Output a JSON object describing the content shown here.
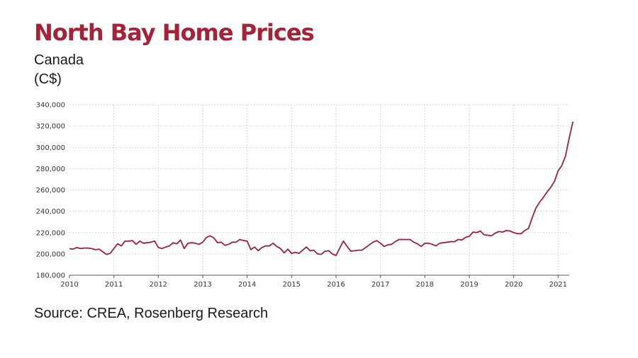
{
  "header": {
    "title": "North Bay Home Prices",
    "subtitle": "Canada",
    "units": "(C$)"
  },
  "footer": {
    "source": "Source: CREA, Rosenberg Research"
  },
  "colors": {
    "title": "#a52238",
    "line": "#9c2336",
    "grid": "#d9d9d9",
    "axis": "#555555"
  },
  "chart_data": {
    "type": "line",
    "title": "North Bay Home Prices",
    "xlabel": "",
    "ylabel": "",
    "xlim": [
      2010,
      2021.25
    ],
    "ylim": [
      180000,
      340000
    ],
    "grid": true,
    "x_ticks": [
      2010,
      2011,
      2012,
      2013,
      2014,
      2015,
      2016,
      2017,
      2018,
      2019,
      2020,
      2021
    ],
    "y_ticks": [
      180000,
      200000,
      220000,
      240000,
      260000,
      280000,
      300000,
      320000,
      340000
    ],
    "x_tick_labels": [
      "2010",
      "2011",
      "2012",
      "2013",
      "2014",
      "2015",
      "2016",
      "2017",
      "2018",
      "2019",
      "2020",
      "2021"
    ],
    "y_tick_labels": [
      "180,000",
      "200,000",
      "220,000",
      "240,000",
      "260,000",
      "280,000",
      "300,000",
      "320,000",
      "340,000"
    ],
    "series": [
      {
        "name": "North Bay Home Prices",
        "x_start": 2010.0,
        "step": 0.0833333,
        "values": [
          205000,
          204500,
          206000,
          205000,
          205500,
          205500,
          205000,
          204000,
          204500,
          202000,
          199500,
          200500,
          205000,
          209500,
          207500,
          212000,
          212000,
          212500,
          209000,
          212000,
          210000,
          210500,
          211000,
          212000,
          206000,
          205000,
          206500,
          207500,
          210500,
          209500,
          213000,
          205000,
          210000,
          210500,
          210000,
          209000,
          211000,
          215500,
          217000,
          215000,
          210500,
          211000,
          208000,
          209000,
          211000,
          211000,
          213500,
          212500,
          212000,
          204000,
          206500,
          203000,
          206000,
          207500,
          207500,
          210000,
          207000,
          205000,
          201000,
          204500,
          200500,
          201500,
          200500,
          203500,
          206500,
          203000,
          203500,
          200000,
          199500,
          202500,
          203000,
          200000,
          198500,
          205500,
          212000,
          207000,
          202500,
          203000,
          203500,
          203500,
          206000,
          208500,
          211000,
          212500,
          210000,
          207000,
          208500,
          209000,
          211500,
          213500,
          213500,
          213500,
          213500,
          211000,
          209500,
          207000,
          210000,
          210000,
          209000,
          207500,
          210000,
          210500,
          211000,
          211500,
          211500,
          213500,
          213000,
          215500,
          216500,
          220500,
          220000,
          221500,
          218000,
          217500,
          217000,
          219500,
          221000,
          220500,
          222000,
          221500,
          220000,
          219000,
          219000,
          222000,
          224000,
          234000,
          243000,
          248500,
          253000,
          258000,
          262500,
          268000,
          278000,
          283000,
          292000,
          309000,
          324000
        ]
      }
    ]
  }
}
